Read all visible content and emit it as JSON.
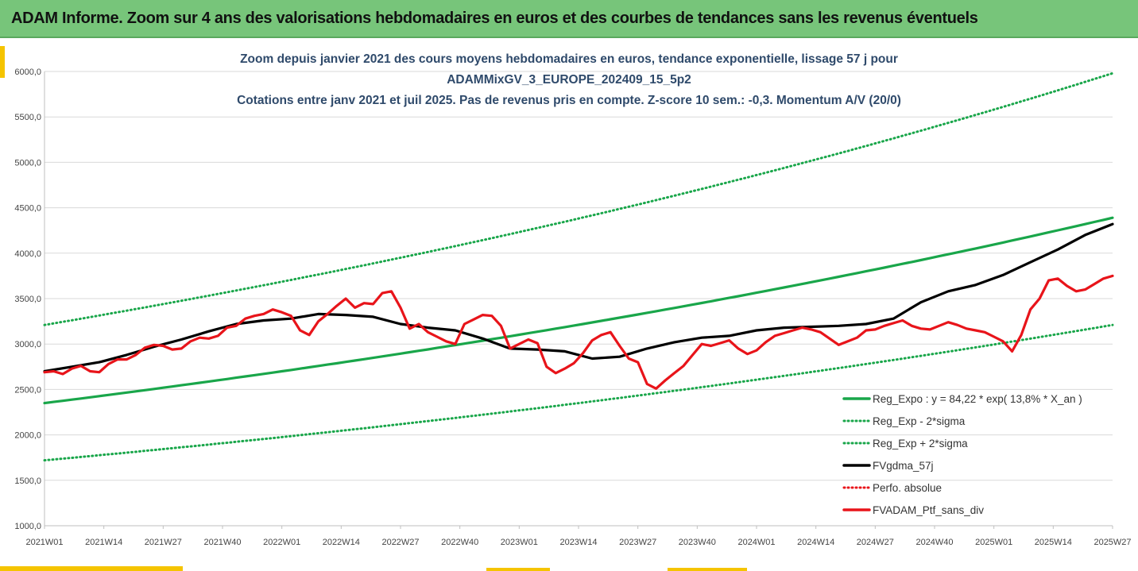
{
  "header": {
    "title": "ADAM Informe. Zoom sur 4 ans des valorisations hebdomadaires en euros et des courbes de tendances sans les revenus éventuels"
  },
  "colors": {
    "banner": "#77c57a",
    "accent": "#f5c400",
    "trend": "#19a64a",
    "band": "#19a64a",
    "smooth": "#000000",
    "price": "#e8141a"
  },
  "chart_data": {
    "type": "line",
    "title_lines": [
      "Zoom depuis janvier 2021 des cours moyens hebdomadaires  en euros, tendance exponentielle, lissage 57 j pour",
      "ADAMMixGV_3_EUROPE_202409_15_5p2",
      "Cotations entre janv 2021 et juil 2025. Pas de revenus pris en compte. Z-score 10 sem.: -0,3. Momentum A/V (20/0)"
    ],
    "x_ticks": [
      "2021W01",
      "2021W14",
      "2021W27",
      "2021W40",
      "2022W01",
      "2022W14",
      "2022W27",
      "2022W40",
      "2023W01",
      "2023W14",
      "2023W27",
      "2023W40",
      "2024W01",
      "2024W14",
      "2024W27",
      "2024W40",
      "2025W01",
      "2025W14",
      "2025W27"
    ],
    "ylim": [
      1000,
      6000
    ],
    "y_ticks": [
      "1000,0",
      "1500,0",
      "2000,0",
      "2500,0",
      "3000,0",
      "3500,0",
      "4000,0",
      "4500,0",
      "5000,0",
      "5500,0",
      "6000,0"
    ],
    "grid": "horizontal",
    "legend_position": "bottom-right",
    "series": [
      {
        "name": "Reg_Expo : y = 84,22 * exp( 13,8% *  X_an )",
        "style": "solid",
        "color": "#19a64a",
        "x": [
          0,
          234
        ],
        "values": [
          2350,
          4390
        ]
      },
      {
        "name": "Reg_Exp - 2*sigma",
        "style": "dotted",
        "color": "#19a64a",
        "x": [
          0,
          234
        ],
        "values": [
          1720,
          3210
        ]
      },
      {
        "name": "Reg_Exp + 2*sigma",
        "style": "dotted",
        "color": "#19a64a",
        "x": [
          0,
          234
        ],
        "values": [
          3210,
          5980
        ]
      },
      {
        "name": "FVgdma_57j",
        "style": "solid",
        "color": "#000000",
        "x": [
          0,
          6,
          12,
          18,
          24,
          30,
          36,
          42,
          48,
          54,
          60,
          66,
          72,
          78,
          84,
          90,
          96,
          102,
          108,
          114,
          120,
          126,
          132,
          138,
          144,
          150,
          156,
          162,
          168,
          174,
          180,
          186,
          192,
          198,
          204,
          210,
          216,
          222,
          228,
          234
        ],
        "values": [
          2700,
          2750,
          2800,
          2880,
          2970,
          3050,
          3140,
          3220,
          3260,
          3280,
          3330,
          3320,
          3300,
          3220,
          3180,
          3150,
          3060,
          2950,
          2940,
          2920,
          2840,
          2860,
          2950,
          3020,
          3070,
          3090,
          3150,
          3180,
          3190,
          3200,
          3220,
          3280,
          3460,
          3580,
          3650,
          3760,
          3900,
          4040,
          4200,
          4320
        ]
      },
      {
        "name": "Perfo. absolue",
        "style": "dotted",
        "color": "#e8141a",
        "x": [],
        "values": []
      },
      {
        "name": "FVADAM_Ptf_sans_div",
        "style": "solid",
        "color": "#e8141a",
        "x": [
          0,
          2,
          4,
          6,
          8,
          10,
          12,
          14,
          16,
          18,
          20,
          22,
          24,
          26,
          28,
          30,
          32,
          34,
          36,
          38,
          40,
          42,
          44,
          46,
          48,
          50,
          52,
          54,
          56,
          58,
          60,
          62,
          64,
          66,
          68,
          70,
          72,
          74,
          76,
          78,
          80,
          82,
          84,
          86,
          88,
          90,
          92,
          94,
          96,
          98,
          100,
          102,
          104,
          106,
          108,
          110,
          112,
          114,
          116,
          118,
          120,
          122,
          124,
          126,
          128,
          130,
          132,
          134,
          136,
          138,
          140,
          142,
          144,
          146,
          148,
          150,
          152,
          154,
          156,
          158,
          160,
          162,
          164,
          166,
          168,
          170,
          172,
          174,
          176,
          178,
          180,
          182,
          184,
          186,
          188,
          190,
          192,
          194,
          196,
          198,
          200,
          202,
          204,
          206,
          208,
          210,
          212,
          214,
          216,
          218,
          220,
          222,
          224,
          226,
          228,
          230,
          232,
          234
        ],
        "values": [
          2690,
          2700,
          2670,
          2730,
          2760,
          2700,
          2690,
          2780,
          2830,
          2830,
          2880,
          2960,
          2990,
          2980,
          2940,
          2950,
          3030,
          3070,
          3060,
          3090,
          3180,
          3200,
          3280,
          3310,
          3330,
          3380,
          3350,
          3310,
          3150,
          3100,
          3250,
          3330,
          3420,
          3500,
          3400,
          3450,
          3440,
          3560,
          3580,
          3400,
          3170,
          3220,
          3130,
          3080,
          3030,
          3000,
          3220,
          3270,
          3320,
          3310,
          3200,
          2950,
          3000,
          3050,
          3010,
          2750,
          2680,
          2730,
          2790,
          2900,
          3040,
          3100,
          3130,
          2980,
          2840,
          2800,
          2560,
          2510,
          2600,
          2680,
          2760,
          2880,
          3000,
          2980,
          3010,
          3040,
          2950,
          2890,
          2930,
          3020,
          3090,
          3120,
          3150,
          3180,
          3160,
          3130,
          3060,
          2990,
          3030,
          3070,
          3150,
          3160,
          3200,
          3230,
          3260,
          3200,
          3170,
          3160,
          3200,
          3240,
          3210,
          3170,
          3150,
          3130,
          3080,
          3030,
          2920,
          3100,
          3380,
          3500,
          3700,
          3720,
          3640,
          3580,
          3600,
          3660,
          3720,
          3750
        ]
      }
    ]
  }
}
